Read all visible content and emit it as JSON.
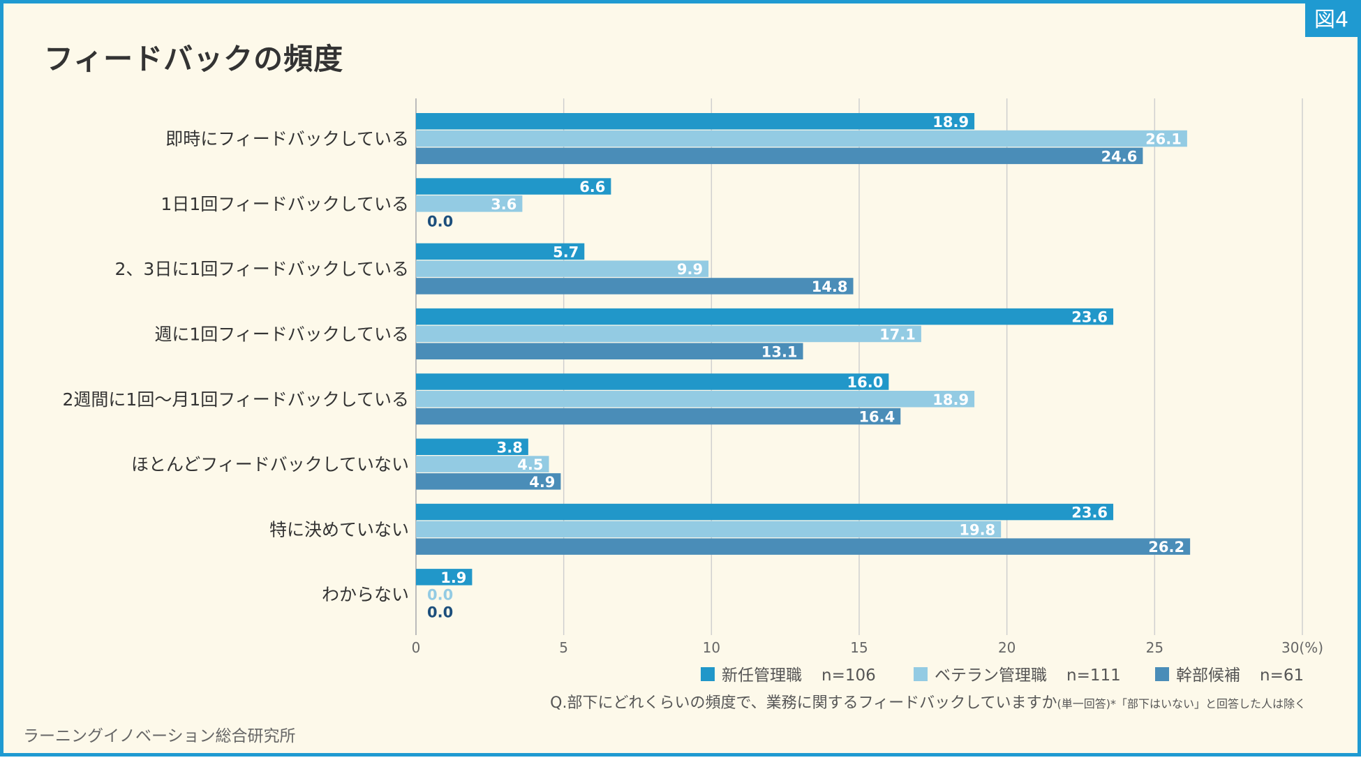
{
  "badge": "図4",
  "title": "フィードバックの頻度",
  "brand": "ラーニングイノベーション総合研究所",
  "chart_data": {
    "type": "bar",
    "orientation": "horizontal",
    "title": "フィードバックの頻度",
    "categories": [
      "即時にフィードバックしている",
      "1日1回フィードバックしている",
      "2、3日に1回フィードバックしている",
      "週に1回フィードバックしている",
      "2週間に1回〜月1回フィードバックしている",
      "ほとんどフィードバックしていない",
      "特に決めていない",
      "わからない"
    ],
    "series": [
      {
        "name": "新任管理職",
        "n": "n=106",
        "color": "#2197c9",
        "values": [
          18.9,
          6.6,
          5.7,
          23.6,
          16.0,
          3.8,
          23.6,
          1.9
        ]
      },
      {
        "name": "ベテラン管理職",
        "n": "n=111",
        "color": "#93cbe3",
        "values": [
          26.1,
          3.6,
          9.9,
          17.1,
          18.9,
          4.5,
          19.8,
          0.0
        ]
      },
      {
        "name": "幹部候補",
        "n": "n=61",
        "color": "#4a8db8",
        "values": [
          24.6,
          0.0,
          14.8,
          13.1,
          16.4,
          4.9,
          26.2,
          0.0
        ]
      }
    ],
    "xlim": [
      0,
      30
    ],
    "xticks": [
      0,
      5,
      10,
      15,
      20,
      25,
      30
    ],
    "xunit": "(%)",
    "grid": true,
    "legend_position": "bottom-right",
    "question": "Q.部下にどれくらいの頻度で、業務に関するフィードバックしていますか",
    "note": "(単一回答)*「部下はいない」と回答した人は除く"
  }
}
